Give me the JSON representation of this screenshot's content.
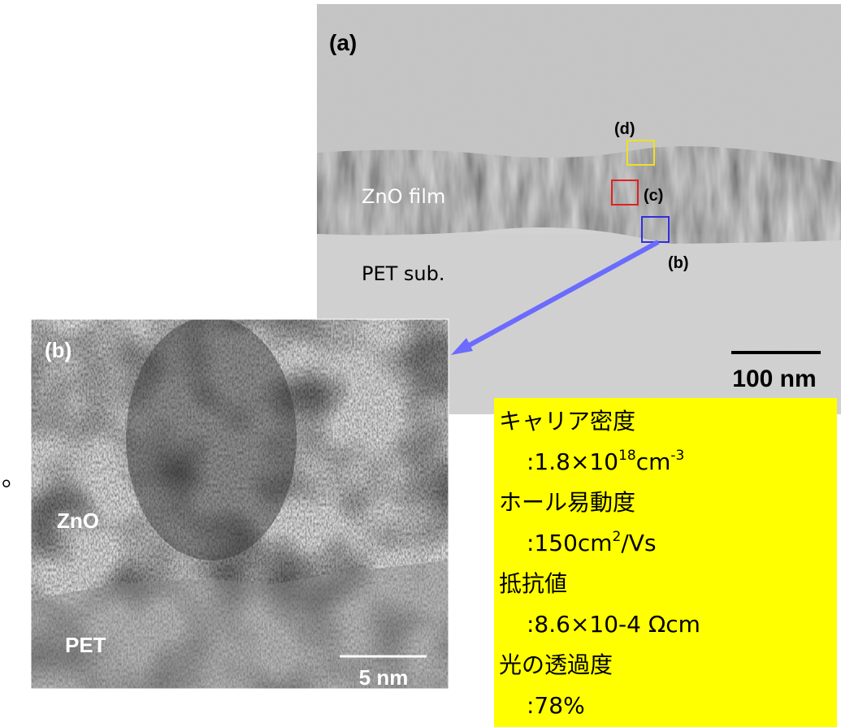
{
  "panel_a": {
    "label": "(a)",
    "box_d": "(d)",
    "box_c": "(c)",
    "box_b": "(b)",
    "film": "ZnO film",
    "substrate": "PET sub.",
    "scale": "100 nm"
  },
  "panel_b": {
    "label": "(b)",
    "film": "ZnO",
    "substrate": "PET",
    "scale": "5 nm"
  },
  "margin_text": "。",
  "properties": [
    {
      "label": "キャリア密度",
      "value": [
        {
          "t": ":1.8×10"
        },
        {
          "sup": "18"
        },
        {
          "t": "cm"
        },
        {
          "sup": "-3"
        }
      ]
    },
    {
      "label": "ホール易動度",
      "value": [
        {
          "t": ":150cm"
        },
        {
          "sup": "2"
        },
        {
          "t": "/Vs"
        }
      ]
    },
    {
      "label": "抵抗値",
      "value": [
        {
          "t": ":8.6×10-4 Ωcm"
        }
      ]
    },
    {
      "label": "光の透過度",
      "value": [
        {
          "t": ":78%"
        }
      ]
    }
  ]
}
